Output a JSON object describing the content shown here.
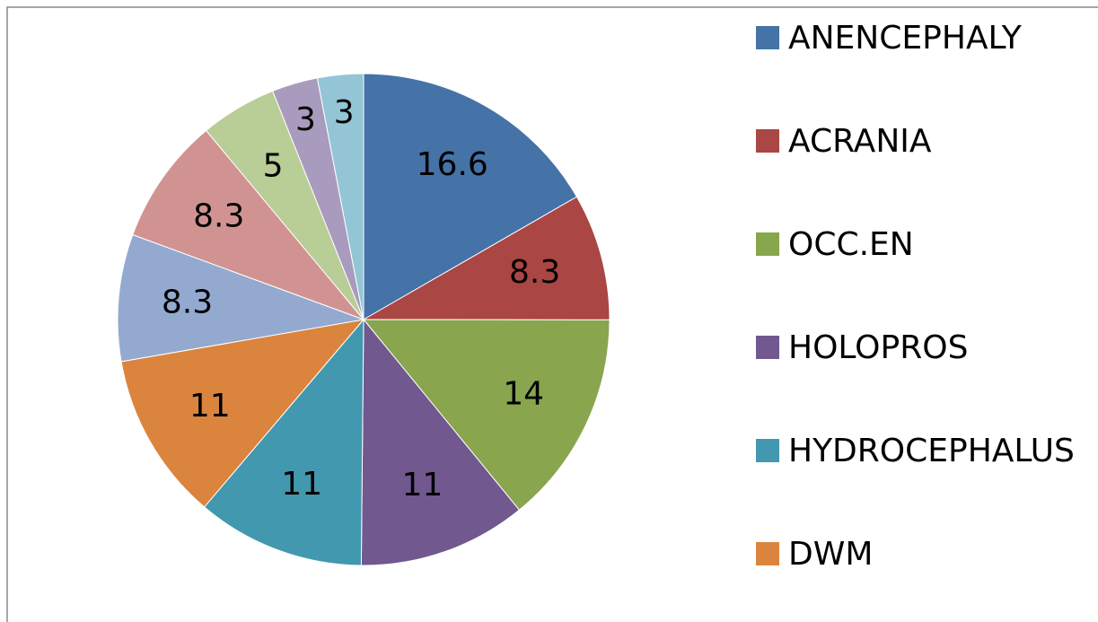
{
  "chart_data": {
    "type": "pie",
    "categories": [
      "ANENCEPHALY",
      "ACRANIA",
      "OCC.EN",
      "HOLOPROS",
      "HYDROCEPHALUS",
      "DWM",
      null,
      null,
      null,
      null,
      null
    ],
    "values": [
      16.6,
      8.3,
      14,
      11,
      11,
      11,
      8.3,
      8.3,
      5,
      3,
      3
    ],
    "colors": [
      "#4572a7",
      "#aa4643",
      "#89a54e",
      "#71588f",
      "#4198af",
      "#db843d",
      "#93a9cf",
      "#d19392",
      "#b9cd96",
      "#a99bbd",
      "#93c5d6"
    ],
    "legend": "right"
  }
}
